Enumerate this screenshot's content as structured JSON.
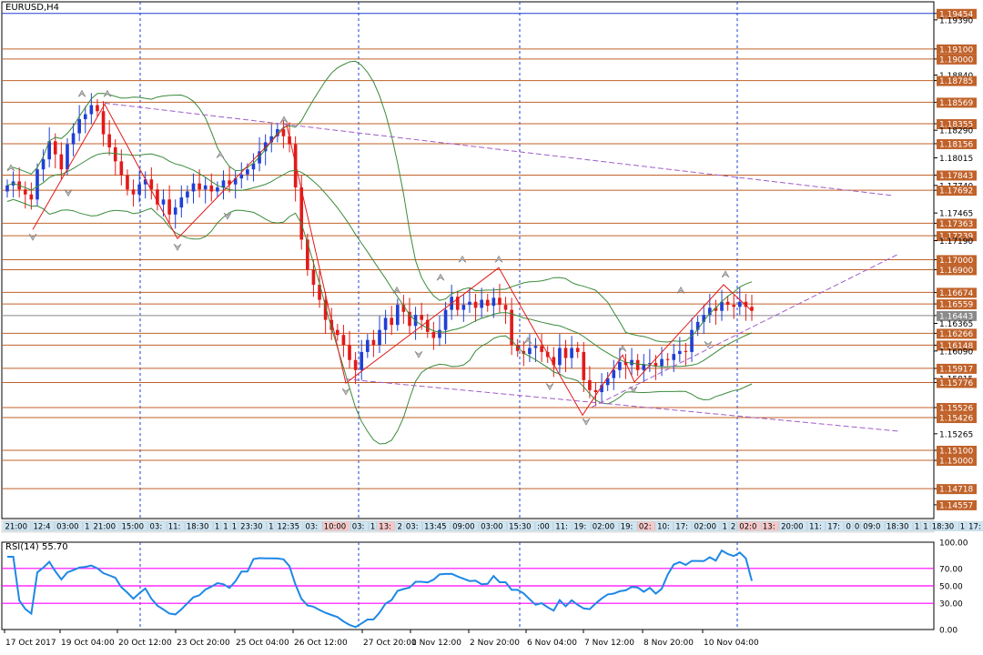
{
  "window": {
    "title": "EURUSD,H4"
  },
  "rsi_panel": {
    "label": "RSI(14) 55.70"
  },
  "colors": {
    "bull": "#1f3fd6",
    "bear": "#e21a1a",
    "level": "#c0622a",
    "boll": "#3a8a3a",
    "channel": "#a05cc8",
    "rsi": "#1e88e5",
    "rsi_level": "#ff00ff",
    "vline": "#1f3fd6"
  },
  "chart_data": [
    {
      "type": "candlestick",
      "title": "EURUSD,H4",
      "ylim": [
        1.1442,
        1.1957
      ],
      "price_ticks": [
        "1.19454",
        "1.19390",
        "1.19100",
        "1.19000",
        "1.18840",
        "1.18785",
        "1.18569",
        "1.18355",
        "1.18290",
        "1.18156",
        "1.18015",
        "1.17843",
        "1.17740",
        "1.17692",
        "1.17465",
        "1.17363",
        "1.17239",
        "1.17190",
        "1.17000",
        "1.16900",
        "1.16674",
        "1.16559",
        "1.16443",
        "1.16365",
        "1.16266",
        "1.16148",
        "1.16090",
        "1.15917",
        "1.15815",
        "1.15776",
        "1.15526",
        "1.15426",
        "1.15265",
        "1.15100",
        "1.15000",
        "1.14718",
        "1.14557"
      ],
      "highlighted_price_ticks": [
        "1.19454",
        "1.19100",
        "1.19000",
        "1.18785",
        "1.18569",
        "1.18355",
        "1.18156",
        "1.17843",
        "1.17692",
        "1.17363",
        "1.17239",
        "1.17000",
        "1.16900",
        "1.16674",
        "1.16559",
        "1.16443",
        "1.16266",
        "1.16148",
        "1.15917",
        "1.15776",
        "1.15526",
        "1.15426",
        "1.15100",
        "1.15000",
        "1.14718",
        "1.14557"
      ],
      "current_price": "1.16443",
      "horizontal_levels": [
        1.191,
        1.19,
        1.18785,
        1.18569,
        1.18355,
        1.18156,
        1.17843,
        1.17692,
        1.17363,
        1.17239,
        1.17,
        1.169,
        1.16674,
        1.16559,
        1.16266,
        1.16148,
        1.15917,
        1.15776,
        1.15526,
        1.15426,
        1.151,
        1.15,
        1.14718
      ],
      "date_labels": [
        "17 Oct 2017",
        "19 Oct 04:00",
        "20 Oct 12:00",
        "23 Oct 20:00",
        "25 Oct 04:00",
        "26 Oct 12:00",
        "27 Oct 20:00",
        "1 Nov 12:00",
        "2 Nov 20:00",
        "6 Nov 04:00",
        "7 Nov 12:00",
        "8 Nov 20:00",
        "10 Nov 04:00"
      ],
      "session_strip": [
        "21:00",
        "12:4",
        "03:00",
        "1",
        "21:00",
        "15:00",
        "03:",
        "11:",
        "18:30",
        "1",
        "1",
        "1",
        "23:30",
        "1",
        "12:35",
        "03:",
        "10:00",
        "03:",
        "1",
        "13:",
        "2",
        "03:",
        "13:45",
        "09:00",
        "03:00",
        "15:30",
        ":00",
        "11:",
        "19:",
        "02:00",
        "19:",
        "02:",
        "10:",
        "17:",
        "02:00",
        "1",
        "2",
        "02:0",
        "13:",
        "20:00",
        "11:",
        "17:",
        "0",
        "0",
        "09:0",
        "18:30",
        "1",
        "1",
        "18:30",
        "1",
        "17:",
        "2",
        "1",
        "17:",
        "02:0"
      ],
      "close_series": [
        1.1774,
        1.1778,
        1.177,
        1.1765,
        1.176,
        1.179,
        1.18,
        1.1818,
        1.1805,
        1.179,
        1.1815,
        1.1826,
        1.184,
        1.1845,
        1.1854,
        1.1848,
        1.1825,
        1.1812,
        1.1798,
        1.1784,
        1.177,
        1.1765,
        1.1775,
        1.178,
        1.177,
        1.1755,
        1.176,
        1.1745,
        1.1752,
        1.1762,
        1.1768,
        1.1776,
        1.177,
        1.1774,
        1.1768,
        1.1772,
        1.1779,
        1.1775,
        1.1781,
        1.1785,
        1.179,
        1.1796,
        1.1808,
        1.1817,
        1.1823,
        1.183,
        1.1823,
        1.1815,
        1.1772,
        1.172,
        1.169,
        1.1675,
        1.166,
        1.164,
        1.163,
        1.1625,
        1.1615,
        1.16,
        1.159,
        1.1608,
        1.162,
        1.1615,
        1.163,
        1.1642,
        1.1635,
        1.1655,
        1.1648,
        1.1634,
        1.1645,
        1.164,
        1.1628,
        1.1622,
        1.163,
        1.165,
        1.1663,
        1.165,
        1.1655,
        1.1658,
        1.1652,
        1.166,
        1.1654,
        1.1662,
        1.1655,
        1.165,
        1.1615,
        1.1609,
        1.1606,
        1.1612,
        1.1614,
        1.1608,
        1.1603,
        1.1595,
        1.1612,
        1.1602,
        1.1612,
        1.1608,
        1.158,
        1.157,
        1.1568,
        1.1575,
        1.1582,
        1.159,
        1.1598,
        1.1595,
        1.16,
        1.159,
        1.1596,
        1.1597,
        1.1594,
        1.1601,
        1.16,
        1.1606,
        1.1609,
        1.1608,
        1.163,
        1.1638,
        1.1645,
        1.1652,
        1.1649,
        1.1658,
        1.1655,
        1.1653,
        1.1658,
        1.1653,
        1.1649
      ],
      "rsi": {
        "name": "RSI(14)",
        "value": 55.7,
        "ylim": [
          0,
          100
        ],
        "ticks": [
          "100.00",
          "70.00",
          "50.00",
          "30.00",
          "0.00"
        ],
        "levels": [
          70,
          50,
          30
        ]
      }
    }
  ]
}
